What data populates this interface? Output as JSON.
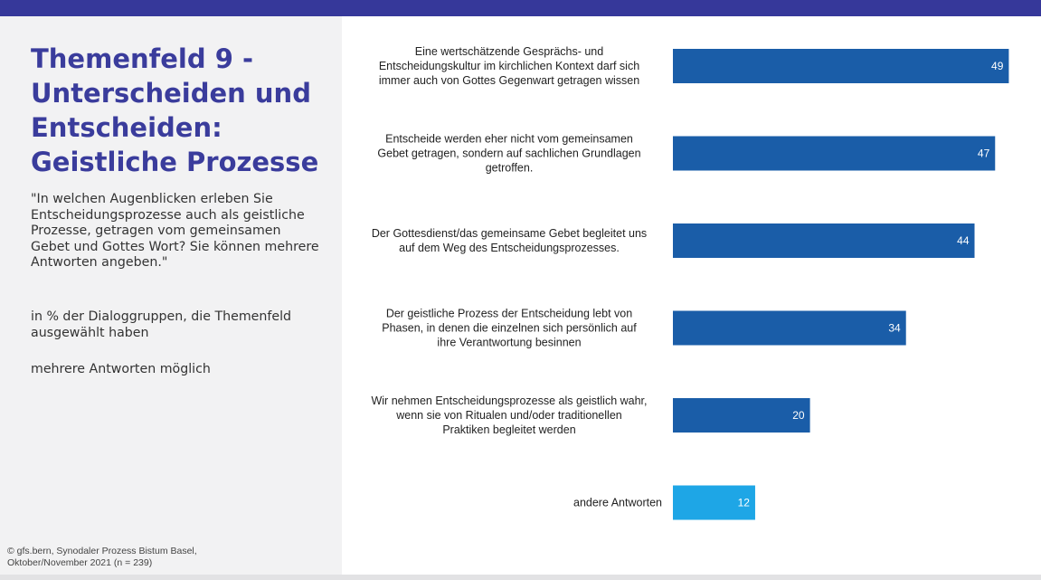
{
  "header": {
    "title": "Themenfeld 9 - Unterscheiden und Entscheiden: Geistliche Prozesse",
    "question": "\"In welchen Augenblicken erleben Sie Entscheidungsprozesse auch als geistliche Prozesse, getragen vom gemeinsamen Gebet und Gottes Wort? Sie können mehrere Antworten angeben.\"",
    "basis": "in % der Dialoggruppen, die Themenfeld ausgewählt haben",
    "multiple": "mehrere Antworten möglich",
    "source": "© gfs.bern, Synodaler Prozess Bistum Basel, Oktober/November 2021 (n = 239)"
  },
  "colors": {
    "header_bar": "#36389a",
    "title": "#3a3c9c",
    "bar_primary": "#1a5da8",
    "bar_other": "#1ea6e6",
    "panel_bg": "#f2f2f3"
  },
  "chart_data": {
    "type": "bar",
    "orientation": "horizontal",
    "categories": [
      "Eine wertschätzende Gesprächs- und Entscheidungskultur im kirchlichen Kontext darf sich immer auch von Gottes Gegenwart getragen wissen",
      "Entscheide werden eher nicht vom gemeinsamen Gebet getragen, sondern auf sachlichen Grundlagen getroffen.",
      "Der Gottesdienst/das gemeinsame Gebet begleitet uns auf dem Weg des Entscheidungsprozesses.",
      "Der geistliche Prozess der Entscheidung lebt von Phasen, in denen die einzelnen sich persönlich auf ihre Verantwortung besinnen",
      "Wir nehmen Entscheidungsprozesse als geistlich wahr, wenn sie von Ritualen und/oder traditionellen Praktiken begleitet werden",
      "andere Antworten"
    ],
    "category_lines": [
      [
        "Eine wertschätzende Gesprächs- und",
        "Entscheidungskultur im kirchlichen Kontext darf sich",
        "immer auch von Gottes Gegenwart getragen wissen"
      ],
      [
        "Entscheide werden eher nicht vom gemeinsamen",
        "Gebet getragen, sondern auf sachlichen Grundlagen",
        "getroffen."
      ],
      [
        "Der Gottesdienst/das gemeinsame Gebet begleitet uns",
        "auf dem Weg des Entscheidungsprozesses."
      ],
      [
        "Der geistliche Prozess der Entscheidung lebt von",
        "Phasen, in denen die einzelnen sich persönlich auf",
        "ihre Verantwortung besinnen"
      ],
      [
        "Wir nehmen Entscheidungsprozesse als geistlich wahr,",
        "wenn sie von Ritualen und/oder traditionellen",
        "Praktiken begleitet werden"
      ],
      [
        "andere Antworten"
      ]
    ],
    "values": [
      49,
      47,
      44,
      34,
      20,
      12
    ],
    "xlim": [
      0,
      100
    ],
    "data_labels": true,
    "grid": false
  }
}
